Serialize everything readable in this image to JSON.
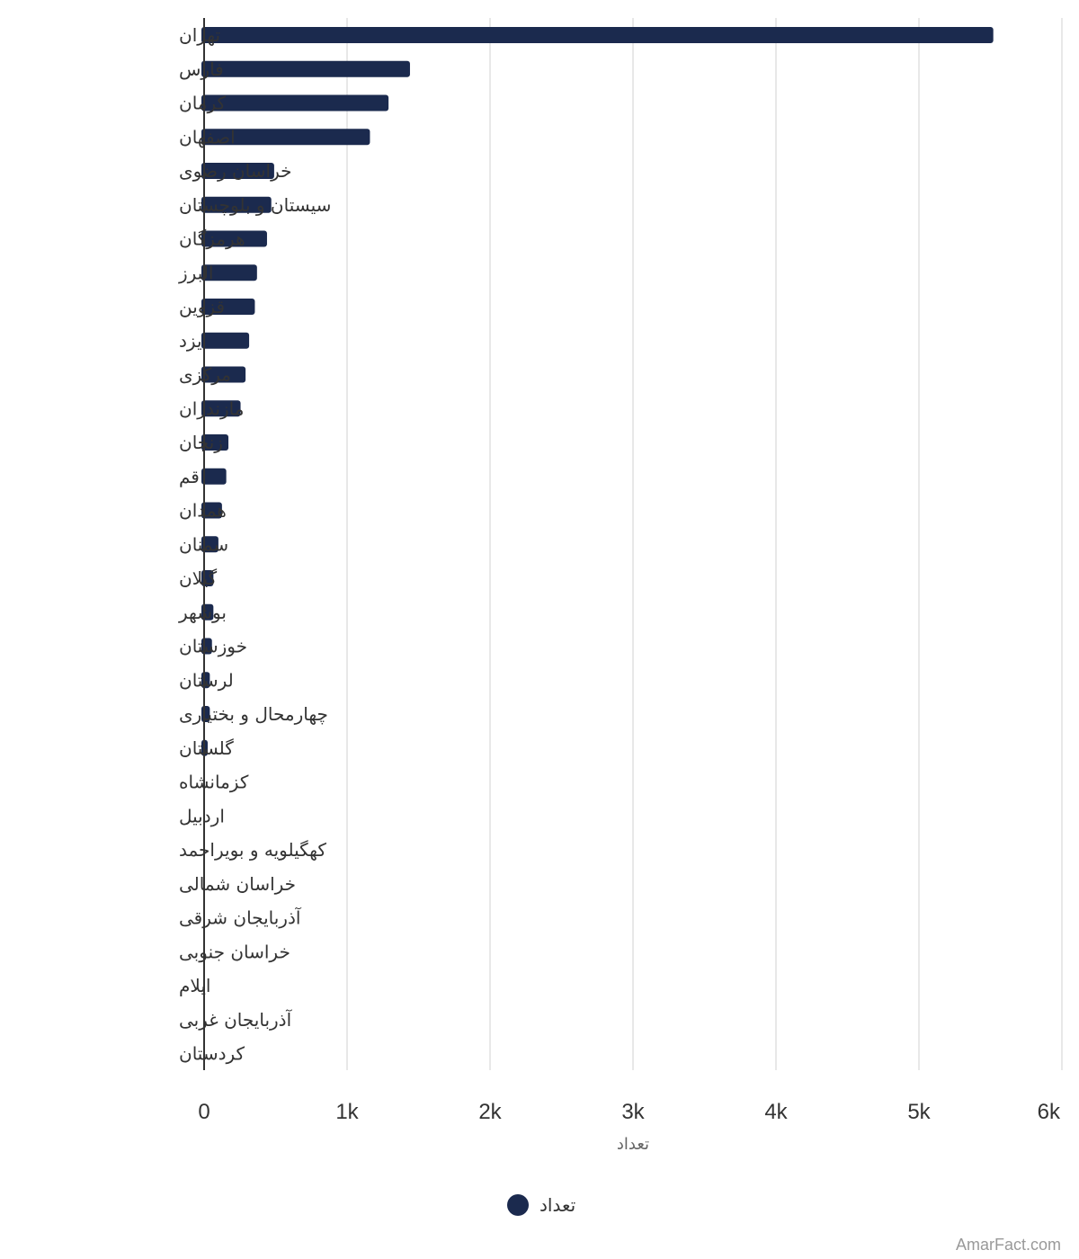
{
  "chart_data": {
    "type": "bar",
    "orientation": "horizontal",
    "categories": [
      "تهران",
      "فارس",
      "کرمان",
      "اصفهان",
      "خراسان رضوی",
      "سیستان و بلوچستان",
      "هرمزگان",
      "البرز",
      "قزوین",
      "یزد",
      "مرکزی",
      "مازندران",
      "زنجان",
      "قم",
      "همدان",
      "سمنان",
      "گیلان",
      "بوشهر",
      "خوزستان",
      "لرستان",
      "چهارمحال و بختیاری",
      "گلستان",
      "کزمانشاه",
      "اردبیل",
      "کهگیلویه و بویراحمد",
      "خراسان شمالی",
      "آذربایجان شرقی",
      "خراسان جنوبی",
      "ایلام",
      "آذربایجان غربی",
      "کردستان"
    ],
    "series": [
      {
        "name": "تعداد",
        "color": "#1b2a4e",
        "values": [
          5520,
          1440,
          1290,
          1160,
          490,
          470,
          440,
          370,
          355,
          315,
          290,
          255,
          170,
          155,
          125,
          100,
          65,
          65,
          55,
          40,
          40,
          25,
          0,
          0,
          0,
          0,
          0,
          0,
          0,
          0,
          0
        ]
      }
    ],
    "xlabel": "تعداد",
    "ylabel": "",
    "xlim": [
      0,
      6000
    ],
    "xticks": [
      {
        "value": 0,
        "label": "0"
      },
      {
        "value": 1000,
        "label": "1k"
      },
      {
        "value": 2000,
        "label": "2k"
      },
      {
        "value": 3000,
        "label": "3k"
      },
      {
        "value": 4000,
        "label": "4k"
      },
      {
        "value": 5000,
        "label": "5k"
      },
      {
        "value": 6000,
        "label": "6k"
      }
    ],
    "grid": "vertical",
    "legend": {
      "position": "bottom-center",
      "label": "تعداد"
    }
  },
  "credit": "AmarFact.com"
}
